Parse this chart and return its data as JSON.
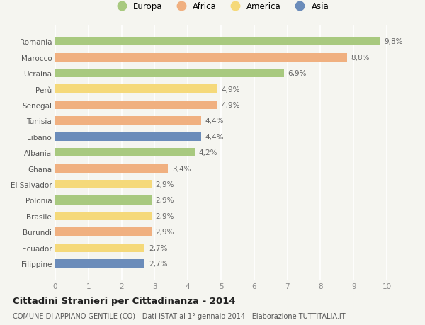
{
  "countries": [
    "Romania",
    "Marocco",
    "Ucraina",
    "Perù",
    "Senegal",
    "Tunisia",
    "Libano",
    "Albania",
    "Ghana",
    "El Salvador",
    "Polonia",
    "Brasile",
    "Burundi",
    "Ecuador",
    "Filippine"
  ],
  "values": [
    9.8,
    8.8,
    6.9,
    4.9,
    4.9,
    4.4,
    4.4,
    4.2,
    3.4,
    2.9,
    2.9,
    2.9,
    2.9,
    2.7,
    2.7
  ],
  "labels": [
    "9,8%",
    "8,8%",
    "6,9%",
    "4,9%",
    "4,9%",
    "4,4%",
    "4,4%",
    "4,2%",
    "3,4%",
    "2,9%",
    "2,9%",
    "2,9%",
    "2,9%",
    "2,7%",
    "2,7%"
  ],
  "categories": [
    "Europa",
    "Africa",
    "America",
    "Asia"
  ],
  "continent": [
    "Europa",
    "Africa",
    "Europa",
    "America",
    "Africa",
    "Africa",
    "Asia",
    "Europa",
    "Africa",
    "America",
    "Europa",
    "America",
    "Africa",
    "America",
    "Asia"
  ],
  "colors": {
    "Europa": "#a8c97f",
    "Africa": "#f0b080",
    "America": "#f5d97a",
    "Asia": "#6b8cba"
  },
  "xlim": [
    0,
    10
  ],
  "xticks": [
    0,
    1,
    2,
    3,
    4,
    5,
    6,
    7,
    8,
    9,
    10
  ],
  "title": "Cittadini Stranieri per Cittadinanza - 2014",
  "subtitle": "COMUNE DI APPIANO GENTILE (CO) - Dati ISTAT al 1° gennaio 2014 - Elaborazione TUTTITALIA.IT",
  "background_color": "#f5f5f0",
  "bar_height": 0.55,
  "label_fontsize": 7.5,
  "title_fontsize": 9.5,
  "subtitle_fontsize": 7,
  "tick_fontsize": 7.5,
  "country_fontsize": 7.5,
  "legend_fontsize": 8.5
}
